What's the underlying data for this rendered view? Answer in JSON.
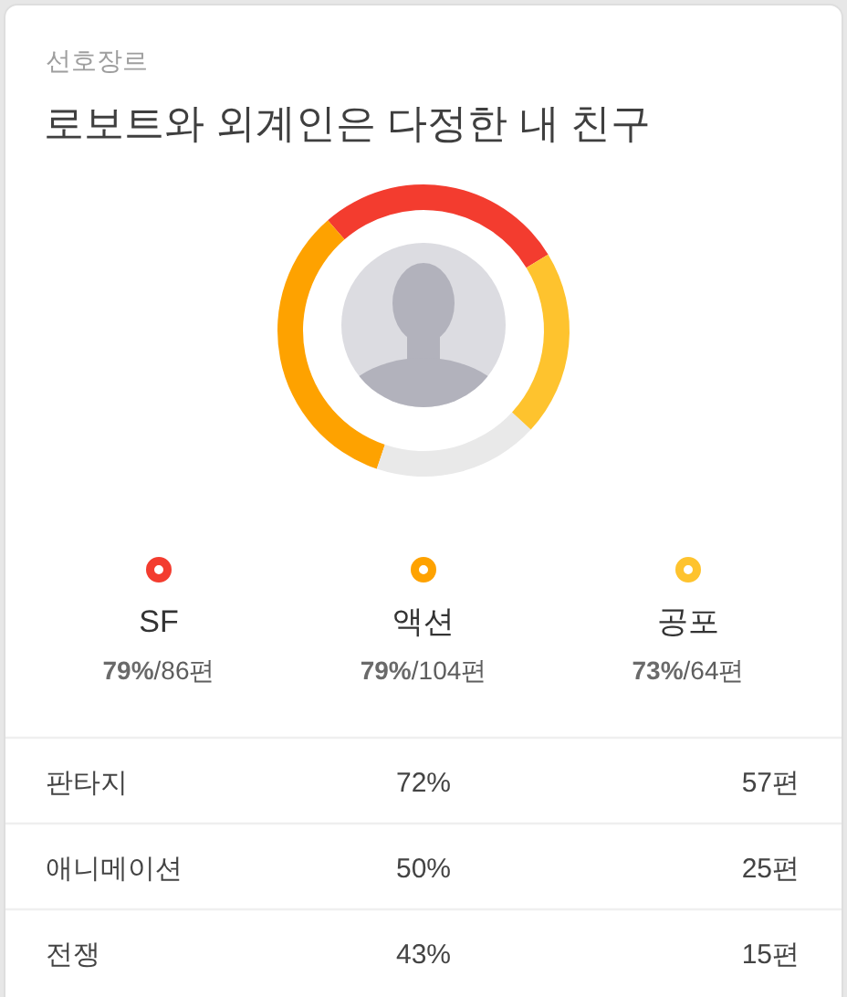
{
  "chart_data": [
    {
      "type": "donut",
      "subtitle": "선호장르",
      "title": "로보트와 외계인은 다정한 내 친구",
      "categories": [
        "SF",
        "액션",
        null,
        "공포"
      ],
      "values": [
        86,
        104,
        57,
        64
      ],
      "colors": [
        "#f33c2f",
        "#fea200",
        "#e9e9e9",
        "#fec32e"
      ],
      "value_labels": [
        "**79%**/86편",
        "**79%**/104편",
        null,
        "**73%**/64편"
      ],
      "legend": "bottom"
    },
    {
      "type": "other",
      "annotations": [
        "판타지",
        "72%",
        "57편",
        "애니메이션",
        "50%",
        "25편",
        "전쟁",
        "43%",
        "15편"
      ]
    }
  ]
}
